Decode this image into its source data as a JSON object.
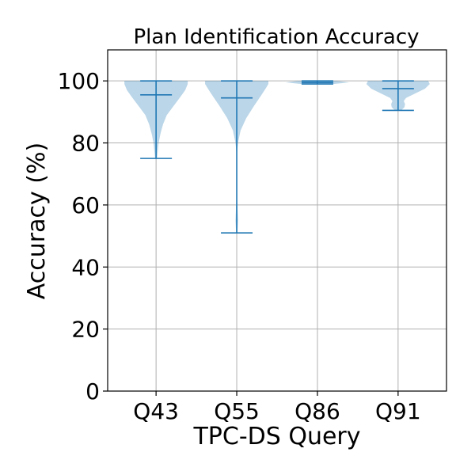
{
  "chart_data": {
    "type": "violin",
    "title": "Plan Identification Accuracy",
    "xlabel": "TPC-DS Query",
    "ylabel": "Accuracy (%)",
    "ylim": [
      0,
      110
    ],
    "yticks": [
      0,
      20,
      40,
      60,
      80,
      100
    ],
    "grid": true,
    "categories": [
      "Q43",
      "Q55",
      "Q86",
      "Q91"
    ],
    "series": [
      {
        "values": [
          {
            "min": 75,
            "mean": 95.5,
            "max": 100,
            "density": [
              [
                75,
                0.03
              ],
              [
                77,
                0.05
              ],
              [
                80,
                0.08
              ],
              [
                83,
                0.14
              ],
              [
                86,
                0.22
              ],
              [
                89,
                0.34
              ],
              [
                92,
                0.56
              ],
              [
                95,
                0.78
              ],
              [
                97,
                0.92
              ],
              [
                99,
                1.0
              ],
              [
                100,
                1.0
              ]
            ]
          },
          {
            "min": 51,
            "mean": 94.5,
            "max": 100,
            "density": [
              [
                51,
                0.02
              ],
              [
                55,
                0.04
              ],
              [
                60,
                0.02
              ],
              [
                65,
                0.0
              ],
              [
                75,
                0.0
              ],
              [
                78,
                0.02
              ],
              [
                80,
                0.04
              ],
              [
                84,
                0.12
              ],
              [
                88,
                0.3
              ],
              [
                92,
                0.55
              ],
              [
                95,
                0.75
              ],
              [
                97,
                0.88
              ],
              [
                99,
                1.0
              ],
              [
                100,
                1.0
              ]
            ]
          },
          {
            "min": 99,
            "mean": 99.5,
            "max": 100,
            "density": [
              [
                99,
                0.5
              ],
              [
                99.5,
                1.0
              ],
              [
                100,
                0.6
              ]
            ]
          },
          {
            "min": 90.5,
            "mean": 97.5,
            "max": 100,
            "density": [
              [
                90.5,
                0.1
              ],
              [
                91.5,
                0.2
              ],
              [
                92.5,
                0.22
              ],
              [
                93.5,
                0.18
              ],
              [
                94.5,
                0.25
              ],
              [
                96,
                0.55
              ],
              [
                97.5,
                0.85
              ],
              [
                99,
                1.0
              ],
              [
                100,
                0.95
              ]
            ]
          }
        ]
      }
    ],
    "colors": {
      "body": "#1f77b4",
      "body_opacity": "0.3",
      "lines": "#1f77b4",
      "grid": "#b0b0b0",
      "axes": "#000000"
    }
  }
}
